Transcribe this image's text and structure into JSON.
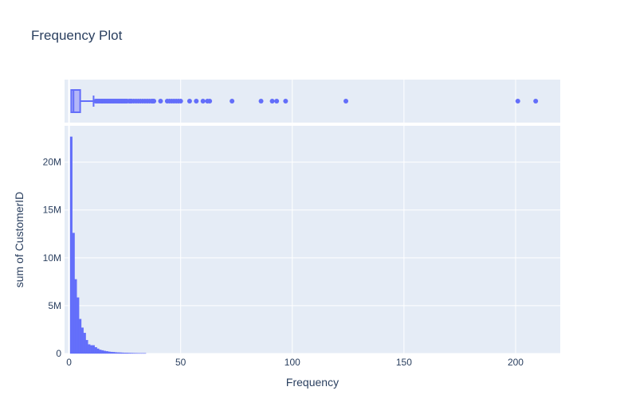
{
  "chart_data": {
    "type": "bar",
    "title": "Frequency Plot",
    "xlabel": "Frequency",
    "ylabel": "sum of CustomerID",
    "xlim": [
      -2,
      220
    ],
    "ylim": [
      0,
      23800000
    ],
    "x_ticks": [
      0,
      50,
      100,
      150,
      200
    ],
    "x_tick_labels": [
      "0",
      "50",
      "100",
      "150",
      "200"
    ],
    "y_ticks": [
      0,
      5000000,
      10000000,
      15000000,
      20000000
    ],
    "y_tick_labels": [
      "0",
      "5M",
      "10M",
      "15M",
      "20M"
    ],
    "grid": true,
    "bar_width": 1,
    "histogram": {
      "x": [
        1,
        2,
        3,
        4,
        5,
        6,
        7,
        8,
        9,
        10,
        11,
        12,
        13,
        14,
        15,
        16,
        17,
        18,
        19,
        20,
        21,
        22,
        23,
        24,
        25,
        26,
        27,
        28,
        29,
        30,
        31,
        32,
        33,
        34
      ],
      "values": [
        22650000,
        12600000,
        7750000,
        5850000,
        3600000,
        2700000,
        2150000,
        1400000,
        950000,
        850000,
        850000,
        650000,
        500000,
        380000,
        330000,
        270000,
        230000,
        190000,
        160000,
        140000,
        120000,
        100000,
        90000,
        80000,
        70000,
        60000,
        50000,
        45000,
        40000,
        35000,
        30000,
        25000,
        20000,
        18000
      ]
    },
    "boxplot": {
      "q1": 1,
      "median": 2,
      "q3": 5,
      "whisker_low": 1,
      "whisker_high": 11,
      "outliers": [
        12,
        12.5,
        13,
        13.5,
        14,
        14.5,
        15,
        15.5,
        16,
        16.5,
        17,
        17.5,
        18,
        18.5,
        19,
        19.5,
        20,
        20.5,
        21,
        21.5,
        22,
        22.5,
        23,
        23.5,
        24,
        24.5,
        25,
        25.5,
        26,
        27,
        27.5,
        28,
        29,
        30,
        31,
        32,
        33,
        34,
        35,
        36,
        37,
        37.5,
        38,
        41,
        44,
        45,
        46,
        47,
        48,
        49,
        50,
        54,
        57,
        60,
        62,
        63,
        73,
        86,
        91,
        93,
        97,
        124,
        201,
        209
      ]
    },
    "colors": {
      "series": "#636efa",
      "box_fill": "#b3b6f8",
      "plot_bg": "#e5ecf6",
      "text": "#2a3f5f"
    }
  }
}
